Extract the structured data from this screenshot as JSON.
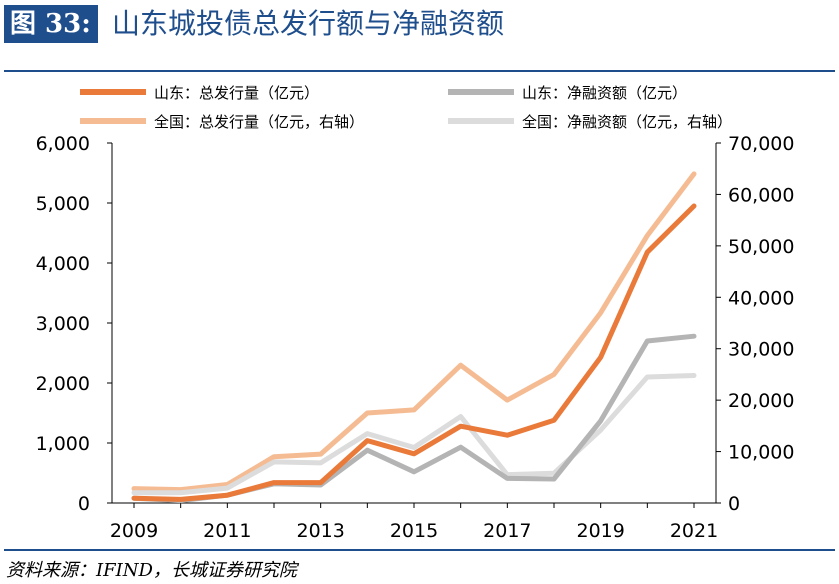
{
  "header": {
    "figure_label": "图 33:",
    "title": "山东城投债总发行额与净融资额"
  },
  "footer": {
    "source": "资料来源：IFIND，长城证券研究院"
  },
  "chart_data": {
    "type": "line",
    "x": [
      2009,
      2010,
      2011,
      2012,
      2013,
      2014,
      2015,
      2016,
      2017,
      2018,
      2019,
      2020,
      2021
    ],
    "x_tick_labels": [
      "2009",
      "2011",
      "2013",
      "2015",
      "2017",
      "2019",
      "2021"
    ],
    "y_left": {
      "ylim": [
        0,
        6000
      ],
      "ticks": [
        "0",
        "1,000",
        "2,000",
        "3,000",
        "4,000",
        "5,000",
        "6,000"
      ]
    },
    "y_right": {
      "ylim": [
        0,
        70000
      ],
      "ticks": [
        "0",
        "10,000",
        "20,000",
        "30,000",
        "40,000",
        "50,000",
        "60,000",
        "70,000"
      ]
    },
    "grid": false,
    "legend_position": "top",
    "series": [
      {
        "name": "山东：总发行量（亿元）",
        "axis": "left",
        "color": "#e97a3a",
        "values": [
          80,
          60,
          130,
          340,
          340,
          1040,
          820,
          1280,
          1130,
          1380,
          2430,
          4180,
          4950
        ]
      },
      {
        "name": "山东：净融资额（亿元）",
        "axis": "left",
        "color": "#b4b4b4",
        "values": [
          80,
          40,
          130,
          320,
          300,
          880,
          520,
          930,
          410,
          400,
          1370,
          2700,
          2780
        ]
      },
      {
        "name": "全国：总发行量（亿元，右轴）",
        "axis": "right",
        "color": "#f5bc93",
        "values": [
          2800,
          2600,
          3600,
          9000,
          9500,
          17500,
          18100,
          26800,
          20000,
          25000,
          37000,
          52000,
          64000
        ]
      },
      {
        "name": "全国：净融资额（亿元，右轴）",
        "axis": "right",
        "color": "#dcdcdc",
        "values": [
          2000,
          2000,
          2900,
          8000,
          7800,
          13500,
          10800,
          16800,
          5500,
          5800,
          14200,
          24500,
          24800
        ]
      }
    ]
  }
}
